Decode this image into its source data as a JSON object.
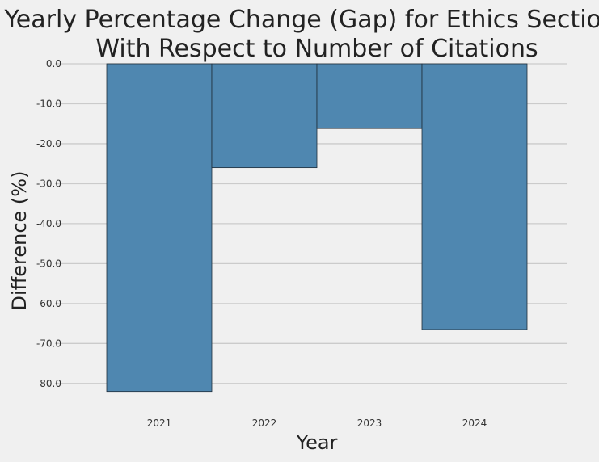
{
  "chart_data": {
    "type": "bar",
    "title": [
      "Yearly Percentage Change (Gap) for Ethics Sections",
      "With Respect to Number of Citations"
    ],
    "xlabel": "Year",
    "ylabel": "Difference (%)",
    "categories": [
      "2021",
      "2022",
      "2023",
      "2024"
    ],
    "values": [
      -82.0,
      -26.0,
      -16.2,
      -66.5
    ],
    "ylim": [
      -85.5,
      0.0
    ],
    "yticks": [
      0.0,
      -10.0,
      -20.0,
      -30.0,
      -40.0,
      -50.0,
      -60.0,
      -70.0,
      -80.0
    ],
    "ytick_labels": [
      "0.0",
      "-10.0",
      "-20.0",
      "-30.0",
      "-40.0",
      "-50.0",
      "-60.0",
      "-70.0",
      "-80.0"
    ],
    "grid": "horizontal",
    "bar_color": "#4f87b0"
  }
}
